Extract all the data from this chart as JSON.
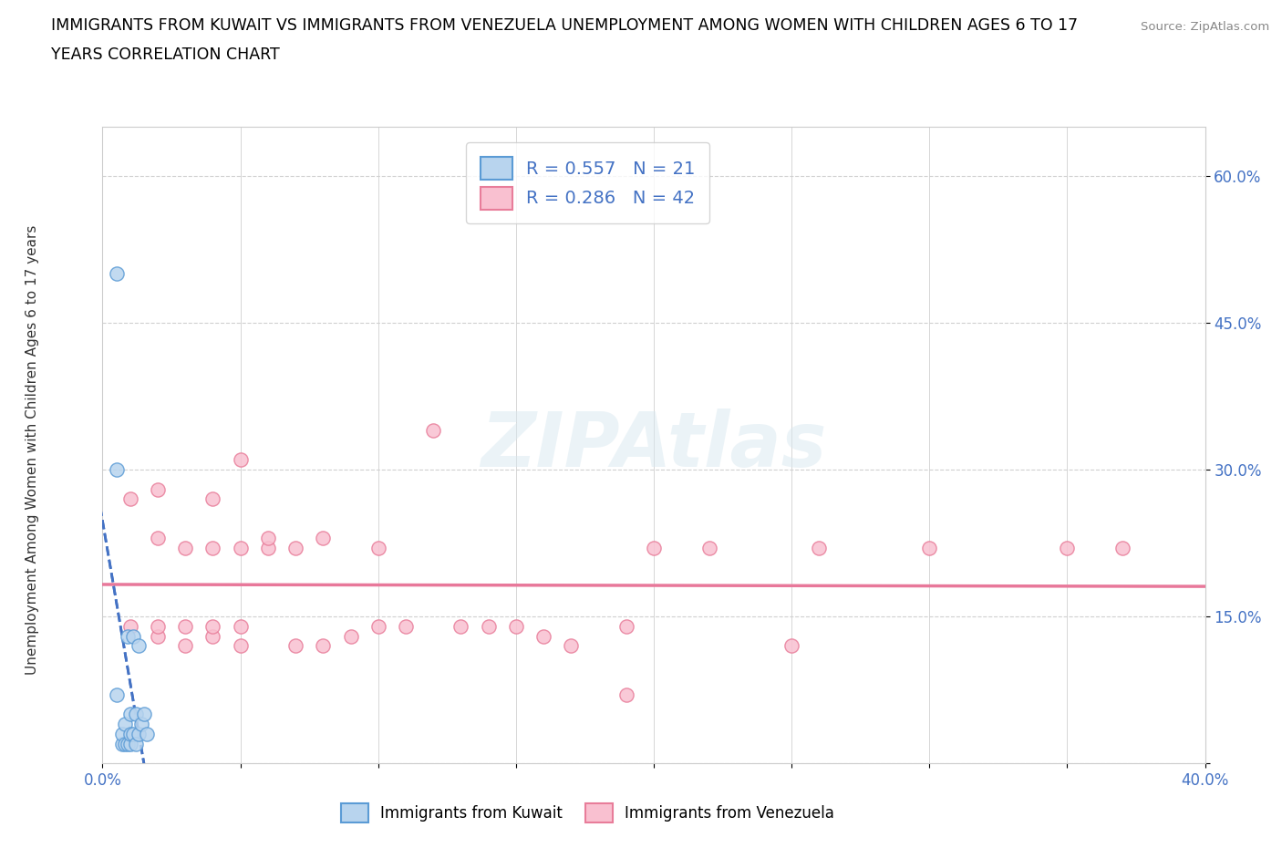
{
  "title_line1": "IMMIGRANTS FROM KUWAIT VS IMMIGRANTS FROM VENEZUELA UNEMPLOYMENT AMONG WOMEN WITH CHILDREN AGES 6 TO 17",
  "title_line2": "YEARS CORRELATION CHART",
  "source": "Source: ZipAtlas.com",
  "xlabel_bottom": "Immigrants from Kuwait",
  "xlabel_bottom2": "Immigrants from Venezuela",
  "ylabel": "Unemployment Among Women with Children Ages 6 to 17 years",
  "x_min": 0.0,
  "x_max": 0.4,
  "y_min": 0.0,
  "y_max": 0.65,
  "kuwait_R": 0.557,
  "kuwait_N": 21,
  "venezuela_R": 0.286,
  "venezuela_N": 42,
  "kuwait_fill_color": "#b8d4ee",
  "venezuela_fill_color": "#f9c0d0",
  "kuwait_edge_color": "#5b9bd5",
  "venezuela_edge_color": "#e87d9a",
  "kuwait_line_color": "#4472c4",
  "venezuela_line_color": "#e8789a",
  "watermark": "ZIPAtlas",
  "kuwait_scatter_x": [
    0.005,
    0.005,
    0.007,
    0.007,
    0.008,
    0.008,
    0.009,
    0.009,
    0.01,
    0.01,
    0.01,
    0.011,
    0.011,
    0.012,
    0.012,
    0.013,
    0.013,
    0.014,
    0.015,
    0.016,
    0.005
  ],
  "kuwait_scatter_y": [
    0.5,
    0.3,
    0.02,
    0.03,
    0.02,
    0.04,
    0.02,
    0.13,
    0.02,
    0.03,
    0.05,
    0.03,
    0.13,
    0.02,
    0.05,
    0.12,
    0.03,
    0.04,
    0.05,
    0.03,
    0.07
  ],
  "venezuela_scatter_x": [
    0.01,
    0.01,
    0.02,
    0.02,
    0.02,
    0.02,
    0.03,
    0.03,
    0.03,
    0.04,
    0.04,
    0.04,
    0.04,
    0.05,
    0.05,
    0.05,
    0.05,
    0.06,
    0.06,
    0.07,
    0.07,
    0.08,
    0.08,
    0.09,
    0.1,
    0.1,
    0.11,
    0.12,
    0.13,
    0.14,
    0.15,
    0.16,
    0.17,
    0.19,
    0.2,
    0.22,
    0.25,
    0.26,
    0.3,
    0.35,
    0.19,
    0.37
  ],
  "venezuela_scatter_y": [
    0.14,
    0.27,
    0.13,
    0.14,
    0.23,
    0.28,
    0.12,
    0.14,
    0.22,
    0.13,
    0.14,
    0.22,
    0.27,
    0.12,
    0.14,
    0.22,
    0.31,
    0.22,
    0.23,
    0.12,
    0.22,
    0.12,
    0.23,
    0.13,
    0.14,
    0.22,
    0.14,
    0.34,
    0.14,
    0.14,
    0.14,
    0.13,
    0.12,
    0.14,
    0.22,
    0.22,
    0.12,
    0.22,
    0.22,
    0.22,
    0.07,
    0.22
  ]
}
